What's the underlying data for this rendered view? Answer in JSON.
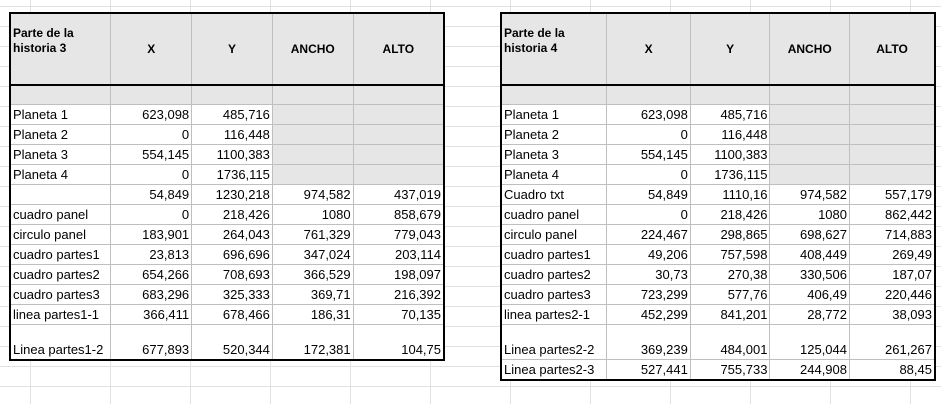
{
  "headers": {
    "x": "X",
    "y": "Y",
    "ancho": "ANCHO",
    "alto": "ALTO"
  },
  "table3": {
    "title": "Parte de la historia 3",
    "rows": [
      {
        "label": "Planeta 1",
        "x": "623,098",
        "y": "485,716",
        "ancho": "",
        "alto": ""
      },
      {
        "label": "Planeta 2",
        "x": "0",
        "y": "116,448",
        "ancho": "",
        "alto": ""
      },
      {
        "label": "Planeta 3",
        "x": "554,145",
        "y": "1100,383",
        "ancho": "",
        "alto": ""
      },
      {
        "label": "Planeta 4",
        "x": "0",
        "y": "1736,115",
        "ancho": "",
        "alto": ""
      },
      {
        "label": "",
        "x": "54,849",
        "y": "1230,218",
        "ancho": "974,582",
        "alto": "437,019"
      },
      {
        "label": "cuadro panel",
        "x": "0",
        "y": "218,426",
        "ancho": "1080",
        "alto": "858,679"
      },
      {
        "label": "circulo panel",
        "x": "183,901",
        "y": "264,043",
        "ancho": "761,329",
        "alto": "779,043"
      },
      {
        "label": "cuadro partes1",
        "x": "23,813",
        "y": "696,696",
        "ancho": "347,024",
        "alto": "203,114"
      },
      {
        "label": "cuadro partes2",
        "x": "654,266",
        "y": "708,693",
        "ancho": "366,529",
        "alto": "198,097"
      },
      {
        "label": "cuadro partes3",
        "x": "683,296",
        "y": "325,333",
        "ancho": "369,71",
        "alto": "216,392"
      },
      {
        "label": "linea partes1-1",
        "x": "366,411",
        "y": "678,466",
        "ancho": "186,31",
        "alto": "70,135"
      },
      {
        "label": "Linea partes1-2",
        "x": "677,893",
        "y": "520,344",
        "ancho": "172,381",
        "alto": "104,75"
      }
    ]
  },
  "table4": {
    "title": "Parte de la historia 4",
    "rows": [
      {
        "label": "Planeta 1",
        "x": "623,098",
        "y": "485,716",
        "ancho": "",
        "alto": ""
      },
      {
        "label": "Planeta 2",
        "x": "0",
        "y": "116,448",
        "ancho": "",
        "alto": ""
      },
      {
        "label": "Planeta 3",
        "x": "554,145",
        "y": "1100,383",
        "ancho": "",
        "alto": ""
      },
      {
        "label": "Planeta 4",
        "x": "0",
        "y": "1736,115",
        "ancho": "",
        "alto": ""
      },
      {
        "label": "Cuadro txt",
        "x": "54,849",
        "y": "1110,16",
        "ancho": "974,582",
        "alto": "557,179"
      },
      {
        "label": "cuadro panel",
        "x": "0",
        "y": "218,426",
        "ancho": "1080",
        "alto": "862,442"
      },
      {
        "label": "circulo panel",
        "x": "224,467",
        "y": "298,865",
        "ancho": "698,627",
        "alto": "714,883"
      },
      {
        "label": "cuadro partes1",
        "x": "49,206",
        "y": "757,598",
        "ancho": "408,449",
        "alto": "269,49"
      },
      {
        "label": "cuadro partes2",
        "x": "30,73",
        "y": "270,38",
        "ancho": "330,506",
        "alto": "187,07"
      },
      {
        "label": "cuadro partes3",
        "x": "723,299",
        "y": "577,76",
        "ancho": "406,49",
        "alto": "220,446"
      },
      {
        "label": "linea partes2-1",
        "x": "452,299",
        "y": "841,201",
        "ancho": "28,772",
        "alto": "38,093"
      },
      {
        "label": "Linea partes2-2",
        "x": "369,239",
        "y": "484,001",
        "ancho": "125,044",
        "alto": "261,267"
      },
      {
        "label": "Linea partes2-3",
        "x": "527,441",
        "y": "755,733",
        "ancho": "244,908",
        "alto": "88,45"
      }
    ]
  }
}
